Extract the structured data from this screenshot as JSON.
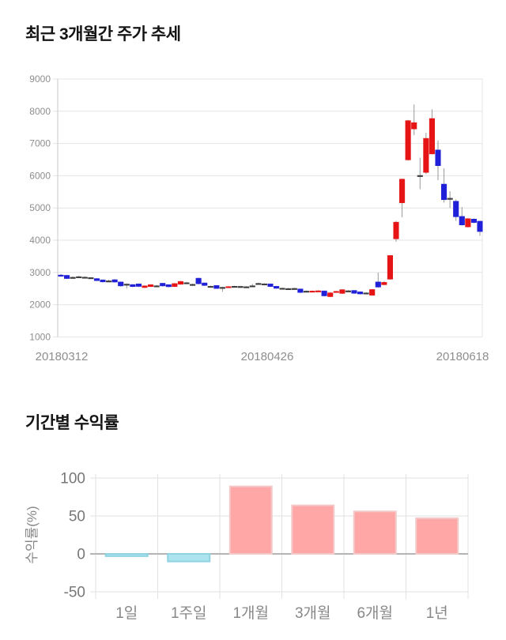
{
  "price_section": {
    "title": "최근 3개월간 주가 추세"
  },
  "returns_section": {
    "title": "기간별 수익률"
  },
  "chart_data": [
    {
      "type": "candlestick",
      "title": "최근 3개월간 주가 추세",
      "ylim": [
        1000,
        9000
      ],
      "y_ticks": [
        9000,
        8000,
        7000,
        6000,
        5000,
        4000,
        3000,
        2000,
        1000
      ],
      "x_tick_labels": [
        "20180312",
        "20180426",
        "20180618"
      ],
      "grid": true,
      "up_color": "#e61414",
      "down_color": "#2020d9",
      "flat_color": "#3c3c3c",
      "wick_color": "#999999",
      "candles_format": [
        "open",
        "high",
        "low",
        "close"
      ],
      "candles": [
        [
          2920,
          2950,
          2870,
          2890
        ],
        [
          2910,
          2925,
          2795,
          2810
        ],
        [
          2845,
          2875,
          2820,
          2850
        ],
        [
          2870,
          2890,
          2845,
          2860
        ],
        [
          2855,
          2880,
          2835,
          2850
        ],
        [
          2840,
          2855,
          2815,
          2830
        ],
        [
          2810,
          2825,
          2735,
          2745
        ],
        [
          2770,
          2780,
          2690,
          2705
        ],
        [
          2735,
          2775,
          2700,
          2740
        ],
        [
          2775,
          2790,
          2685,
          2700
        ],
        [
          2705,
          2715,
          2560,
          2580
        ],
        [
          2635,
          2660,
          2500,
          2640
        ],
        [
          2625,
          2640,
          2540,
          2560
        ],
        [
          2645,
          2655,
          2545,
          2565
        ],
        [
          2530,
          2600,
          2515,
          2585
        ],
        [
          2560,
          2635,
          2548,
          2620
        ],
        [
          2588,
          2608,
          2562,
          2582
        ],
        [
          2665,
          2678,
          2560,
          2580
        ],
        [
          2622,
          2632,
          2538,
          2555
        ],
        [
          2560,
          2672,
          2548,
          2655
        ],
        [
          2632,
          2738,
          2618,
          2722
        ],
        [
          2682,
          2705,
          2652,
          2678
        ],
        [
          2632,
          2650,
          2578,
          2626
        ],
        [
          2822,
          2838,
          2630,
          2648
        ],
        [
          2675,
          2688,
          2578,
          2595
        ],
        [
          2572,
          2592,
          2545,
          2566
        ],
        [
          2595,
          2605,
          2488,
          2502
        ],
        [
          2540,
          2556,
          2402,
          2534
        ],
        [
          2544,
          2576,
          2528,
          2562
        ],
        [
          2572,
          2588,
          2548,
          2566
        ],
        [
          2568,
          2584,
          2550,
          2562
        ],
        [
          2546,
          2572,
          2534,
          2558
        ],
        [
          2588,
          2642,
          2568,
          2584
        ],
        [
          2652,
          2682,
          2638,
          2662
        ],
        [
          2648,
          2662,
          2598,
          2640
        ],
        [
          2645,
          2656,
          2548,
          2562
        ],
        [
          2570,
          2582,
          2492,
          2506
        ],
        [
          2512,
          2528,
          2488,
          2505
        ],
        [
          2502,
          2518,
          2478,
          2494
        ],
        [
          2506,
          2522,
          2484,
          2498
        ],
        [
          2488,
          2498,
          2362,
          2378
        ],
        [
          2422,
          2442,
          2398,
          2412
        ],
        [
          2395,
          2438,
          2382,
          2424
        ],
        [
          2412,
          2448,
          2396,
          2432
        ],
        [
          2428,
          2440,
          2255,
          2272
        ],
        [
          2248,
          2388,
          2232,
          2368
        ],
        [
          2392,
          2428,
          2374,
          2414
        ],
        [
          2348,
          2482,
          2332,
          2466
        ],
        [
          2432,
          2452,
          2408,
          2426
        ],
        [
          2442,
          2452,
          2336,
          2352
        ],
        [
          2398,
          2412,
          2316,
          2332
        ],
        [
          2366,
          2384,
          2344,
          2358
        ],
        [
          2292,
          2482,
          2276,
          2470
        ],
        [
          2705,
          2995,
          2528,
          2545
        ],
        [
          2618,
          2732,
          2604,
          2692
        ],
        [
          2790,
          3540,
          2772,
          3525
        ],
        [
          4040,
          4600,
          3948,
          4560
        ],
        [
          5160,
          5912,
          4710,
          5895
        ],
        [
          6490,
          7732,
          6468,
          7710
        ],
        [
          7450,
          8210,
          7258,
          7648
        ],
        [
          6010,
          6560,
          5580,
          5995
        ],
        [
          6100,
          7330,
          6052,
          7160
        ],
        [
          6675,
          8060,
          6658,
          7775
        ],
        [
          6800,
          7090,
          5865,
          6310
        ],
        [
          5740,
          6230,
          5165,
          5255
        ],
        [
          5302,
          5520,
          5002,
          5288
        ],
        [
          5210,
          5268,
          4598,
          4725
        ],
        [
          4738,
          5030,
          4452,
          4472
        ],
        [
          4412,
          4692,
          4396,
          4668
        ],
        [
          4656,
          4672,
          4528,
          4548
        ],
        [
          4590,
          4602,
          4138,
          4268
        ]
      ]
    },
    {
      "type": "bar",
      "title": "기간별 수익률",
      "categories": [
        "1일",
        "1주일",
        "1개월",
        "3개월",
        "6개월",
        "1년"
      ],
      "values": [
        -3,
        -10,
        89,
        64,
        56,
        47
      ],
      "ylabel": "수익률(%)",
      "y_ticks": [
        100,
        50,
        0,
        -50
      ],
      "ylim": [
        -60,
        105
      ],
      "grid": true,
      "positive_color": "#ffa7a7",
      "positive_border": "#f3caca",
      "negative_color": "#ace4ef",
      "negative_border": "#90d2e0"
    }
  ]
}
